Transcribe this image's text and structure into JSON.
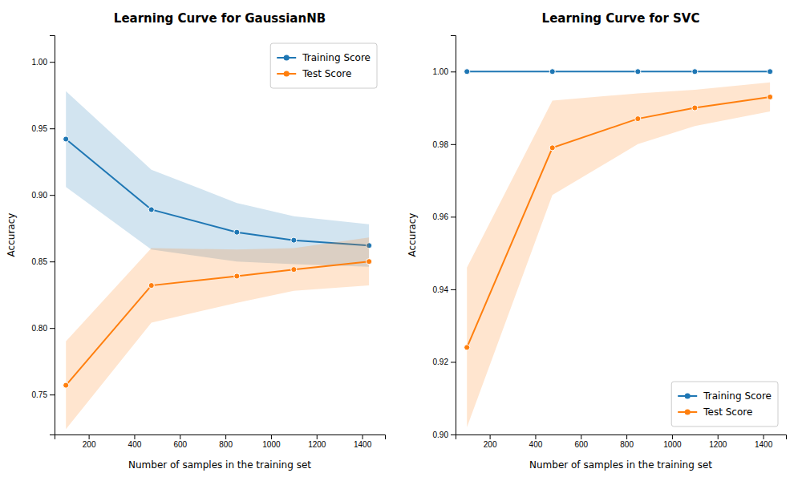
{
  "chart_data": [
    {
      "type": "line",
      "title": "Learning Curve for GaussianNB",
      "xlabel": "Number of samples in the training set",
      "ylabel": "Accuracy",
      "x": [
        100,
        475,
        850,
        1100,
        1430
      ],
      "series": [
        {
          "name": "Training Score",
          "color": "#1f77b4",
          "marker": "circle",
          "line_style": "solid",
          "values": [
            0.942,
            0.889,
            0.872,
            0.866,
            0.862
          ],
          "std": [
            0.036,
            0.03,
            0.022,
            0.018,
            0.016
          ]
        },
        {
          "name": "Test Score",
          "color": "#ff7f0e",
          "marker": "circle",
          "line_style": "solid",
          "values": [
            0.757,
            0.832,
            0.839,
            0.844,
            0.85
          ],
          "std": [
            0.033,
            0.028,
            0.02,
            0.016,
            0.018
          ]
        }
      ],
      "xlim": [
        50,
        1500
      ],
      "xticks": [
        200,
        400,
        600,
        800,
        1000,
        1200,
        1400
      ],
      "ylim": [
        0.72,
        1.02
      ],
      "yticks": [
        0.75,
        {
          "value": 0.8,
          "label": "0.80"
        },
        0.85,
        {
          "value": 0.9,
          "label": "0.90"
        },
        0.95,
        {
          "value": 1.0,
          "label": "1.00"
        }
      ],
      "grid": false,
      "legend": "upper right"
    },
    {
      "type": "line",
      "title": "Learning Curve for SVC",
      "xlabel": "Number of samples in the training set",
      "ylabel": "Accuracy",
      "x": [
        100,
        475,
        850,
        1100,
        1430
      ],
      "series": [
        {
          "name": "Training Score",
          "color": "#1f77b4",
          "marker": "circle",
          "line_style": "solid",
          "values": [
            1.0,
            1.0,
            1.0,
            1.0,
            1.0
          ],
          "std": [
            0.0,
            0.0,
            0.0,
            0.0,
            0.0
          ]
        },
        {
          "name": "Test Score",
          "color": "#ff7f0e",
          "marker": "circle",
          "line_style": "solid",
          "values": [
            0.924,
            0.979,
            0.987,
            0.99,
            0.993
          ],
          "std": [
            0.022,
            0.013,
            0.007,
            0.005,
            0.004
          ]
        }
      ],
      "xlim": [
        50,
        1500
      ],
      "xticks": [
        200,
        400,
        600,
        800,
        1000,
        1200,
        1400
      ],
      "ylim": [
        0.9,
        1.01
      ],
      "yticks": [
        {
          "value": 0.9,
          "label": "0.90"
        },
        0.92,
        0.94,
        0.96,
        0.98,
        {
          "value": 1.0,
          "label": "1.00"
        }
      ],
      "grid": false,
      "legend": "lower right"
    }
  ]
}
